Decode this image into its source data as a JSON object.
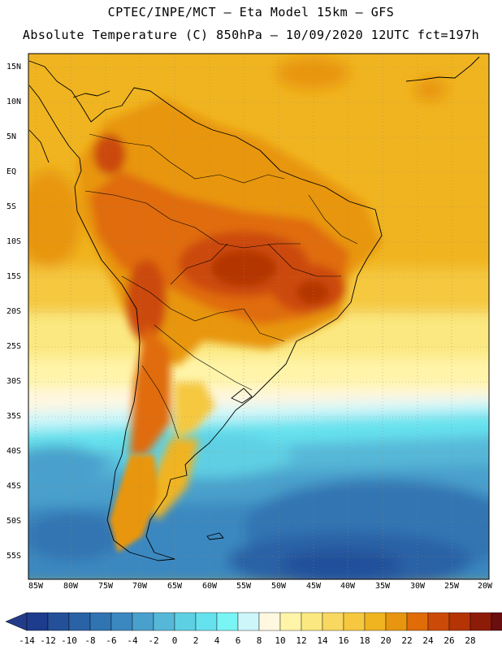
{
  "header": {
    "line1": "CPTEC/INPE/MCT –  Eta Model 15km – GFS",
    "line2": "Absolute Temperature (C) 850hPa – 10/09/2020 12UTC fct=197h"
  },
  "axes": {
    "lat_labels": [
      "15N",
      "10N",
      "5N",
      "EQ",
      "5S",
      "10S",
      "15S",
      "20S",
      "25S",
      "30S",
      "35S",
      "40S",
      "45S",
      "50S",
      "55S"
    ],
    "lon_labels": [
      "85W",
      "80W",
      "75W",
      "70W",
      "65W",
      "60W",
      "55W",
      "50W",
      "45W",
      "40W",
      "35W",
      "30W",
      "25W",
      "20W"
    ]
  },
  "colorbar": {
    "labels": [
      "-14",
      "-12",
      "-10",
      "-8",
      "-6",
      "-4",
      "-2",
      "0",
      "2",
      "4",
      "6",
      "8",
      "10",
      "12",
      "14",
      "16",
      "18",
      "20",
      "22",
      "24",
      "26",
      "28"
    ],
    "colors": [
      "#1e3c8c",
      "#24509a",
      "#2a62a6",
      "#3074b2",
      "#3b88c0",
      "#4aa0cc",
      "#56b8d8",
      "#5ed0e4",
      "#66e2ee",
      "#7af4f4",
      "#cdf6fa",
      "#fff7e0",
      "#fff4a8",
      "#fbe880",
      "#f8d860",
      "#f5c840",
      "#f0b420",
      "#e89610",
      "#e06c08",
      "#cc4a08",
      "#b43406",
      "#8c1c08",
      "#6a0e10"
    ],
    "under_color": "#223c8a",
    "over_color": "#6e0a24"
  }
}
